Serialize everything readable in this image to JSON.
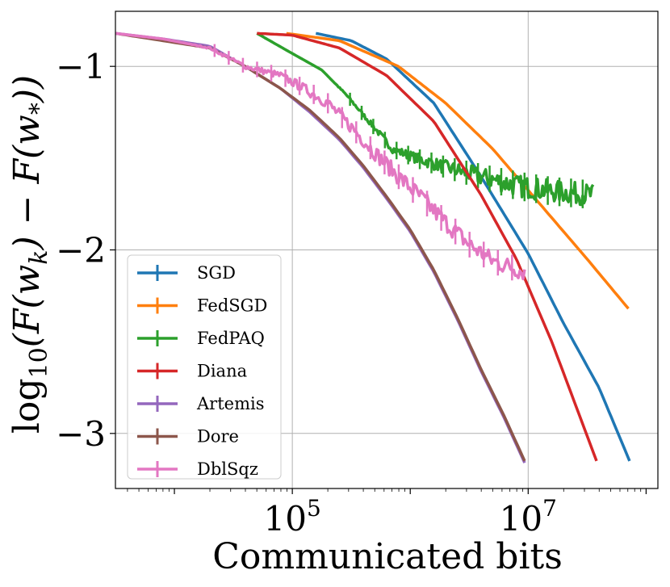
{
  "chart_data": {
    "type": "line",
    "title": "",
    "xlabel": "Communicated bits",
    "ylabel": "log10(F(wk) − F(w*))",
    "ylabel_parts": {
      "pre": "log",
      "sub": "10",
      "open": "(F(w",
      "sub_k": "k",
      "mid": ") − F(w",
      "sub_star": "*",
      "close": "))"
    },
    "xscale": "log",
    "xlim_log10": [
      3.5,
      8.1
    ],
    "ylim": [
      -3.3,
      -0.7
    ],
    "grid": true,
    "x_ticks": [
      {
        "base": "10",
        "exp": "5",
        "log10": 5
      },
      {
        "base": "10",
        "exp": "7",
        "log10": 7
      }
    ],
    "y_ticks": [
      {
        "label": "−1",
        "value": -1
      },
      {
        "label": "−2",
        "value": -2
      },
      {
        "label": "−3",
        "value": -3
      }
    ],
    "legend_position": "lower-left",
    "series": [
      {
        "name": "SGD",
        "color": "#1f77b4",
        "noise": 0,
        "log10x": [
          5.2,
          5.5,
          5.8,
          6.2,
          6.6,
          7.0,
          7.3,
          7.6,
          7.86
        ],
        "y": [
          -0.82,
          -0.86,
          -0.96,
          -1.2,
          -1.6,
          -2.02,
          -2.4,
          -2.75,
          -3.15
        ]
      },
      {
        "name": "FedSGD",
        "color": "#ff7f0e",
        "noise": 0,
        "log10x": [
          4.95,
          5.4,
          5.9,
          6.3,
          6.7,
          7.1,
          7.5,
          7.85
        ],
        "y": [
          -0.82,
          -0.86,
          -1.0,
          -1.2,
          -1.45,
          -1.75,
          -2.05,
          -2.32
        ]
      },
      {
        "name": "FedPAQ",
        "color": "#2ca02c",
        "noise": 0.06,
        "log10x": [
          4.7,
          5.0,
          5.25,
          5.45,
          5.65,
          5.85,
          6.05,
          6.3,
          6.6,
          6.9,
          7.2,
          7.55
        ],
        "y": [
          -0.82,
          -0.93,
          -1.02,
          -1.15,
          -1.3,
          -1.45,
          -1.5,
          -1.55,
          -1.6,
          -1.65,
          -1.68,
          -1.7
        ]
      },
      {
        "name": "Diana",
        "color": "#d62728",
        "noise": 0,
        "log10x": [
          4.7,
          5.0,
          5.4,
          5.8,
          6.2,
          6.6,
          6.9,
          7.2,
          7.58
        ],
        "y": [
          -0.82,
          -0.83,
          -0.9,
          -1.05,
          -1.3,
          -1.7,
          -2.05,
          -2.5,
          -3.15
        ]
      },
      {
        "name": "Artemis",
        "color": "#9467bd",
        "noise": 0,
        "log10x": [
          3.5,
          3.9,
          4.3,
          4.6,
          4.9,
          5.15,
          5.4,
          5.6,
          5.8,
          6.0,
          6.2,
          6.4,
          6.6,
          6.8,
          6.97
        ],
        "y": [
          -0.82,
          -0.85,
          -0.89,
          -1.0,
          -1.12,
          -1.25,
          -1.4,
          -1.55,
          -1.72,
          -1.9,
          -2.12,
          -2.38,
          -2.66,
          -2.92,
          -3.16
        ]
      },
      {
        "name": "Dore",
        "color": "#8c564b",
        "noise": 0,
        "log10x": [
          3.5,
          3.9,
          4.3,
          4.6,
          4.9,
          5.15,
          5.4,
          5.6,
          5.8,
          6.0,
          6.2,
          6.4,
          6.6,
          6.8,
          6.97
        ],
        "y": [
          -0.82,
          -0.86,
          -0.9,
          -1.0,
          -1.12,
          -1.24,
          -1.39,
          -1.54,
          -1.71,
          -1.89,
          -2.11,
          -2.37,
          -2.65,
          -2.91,
          -3.15
        ]
      },
      {
        "name": "DblSqz",
        "color": "#e377c2",
        "noise": 0.05,
        "log10x": [
          3.5,
          3.9,
          4.3,
          4.6,
          4.9,
          5.1,
          5.3,
          5.5,
          5.7,
          5.9,
          6.1,
          6.3,
          6.5,
          6.7,
          6.97
        ],
        "y": [
          -0.82,
          -0.85,
          -0.9,
          -1.0,
          -1.05,
          -1.12,
          -1.2,
          -1.33,
          -1.47,
          -1.6,
          -1.72,
          -1.85,
          -1.97,
          -2.06,
          -2.12
        ]
      }
    ]
  }
}
